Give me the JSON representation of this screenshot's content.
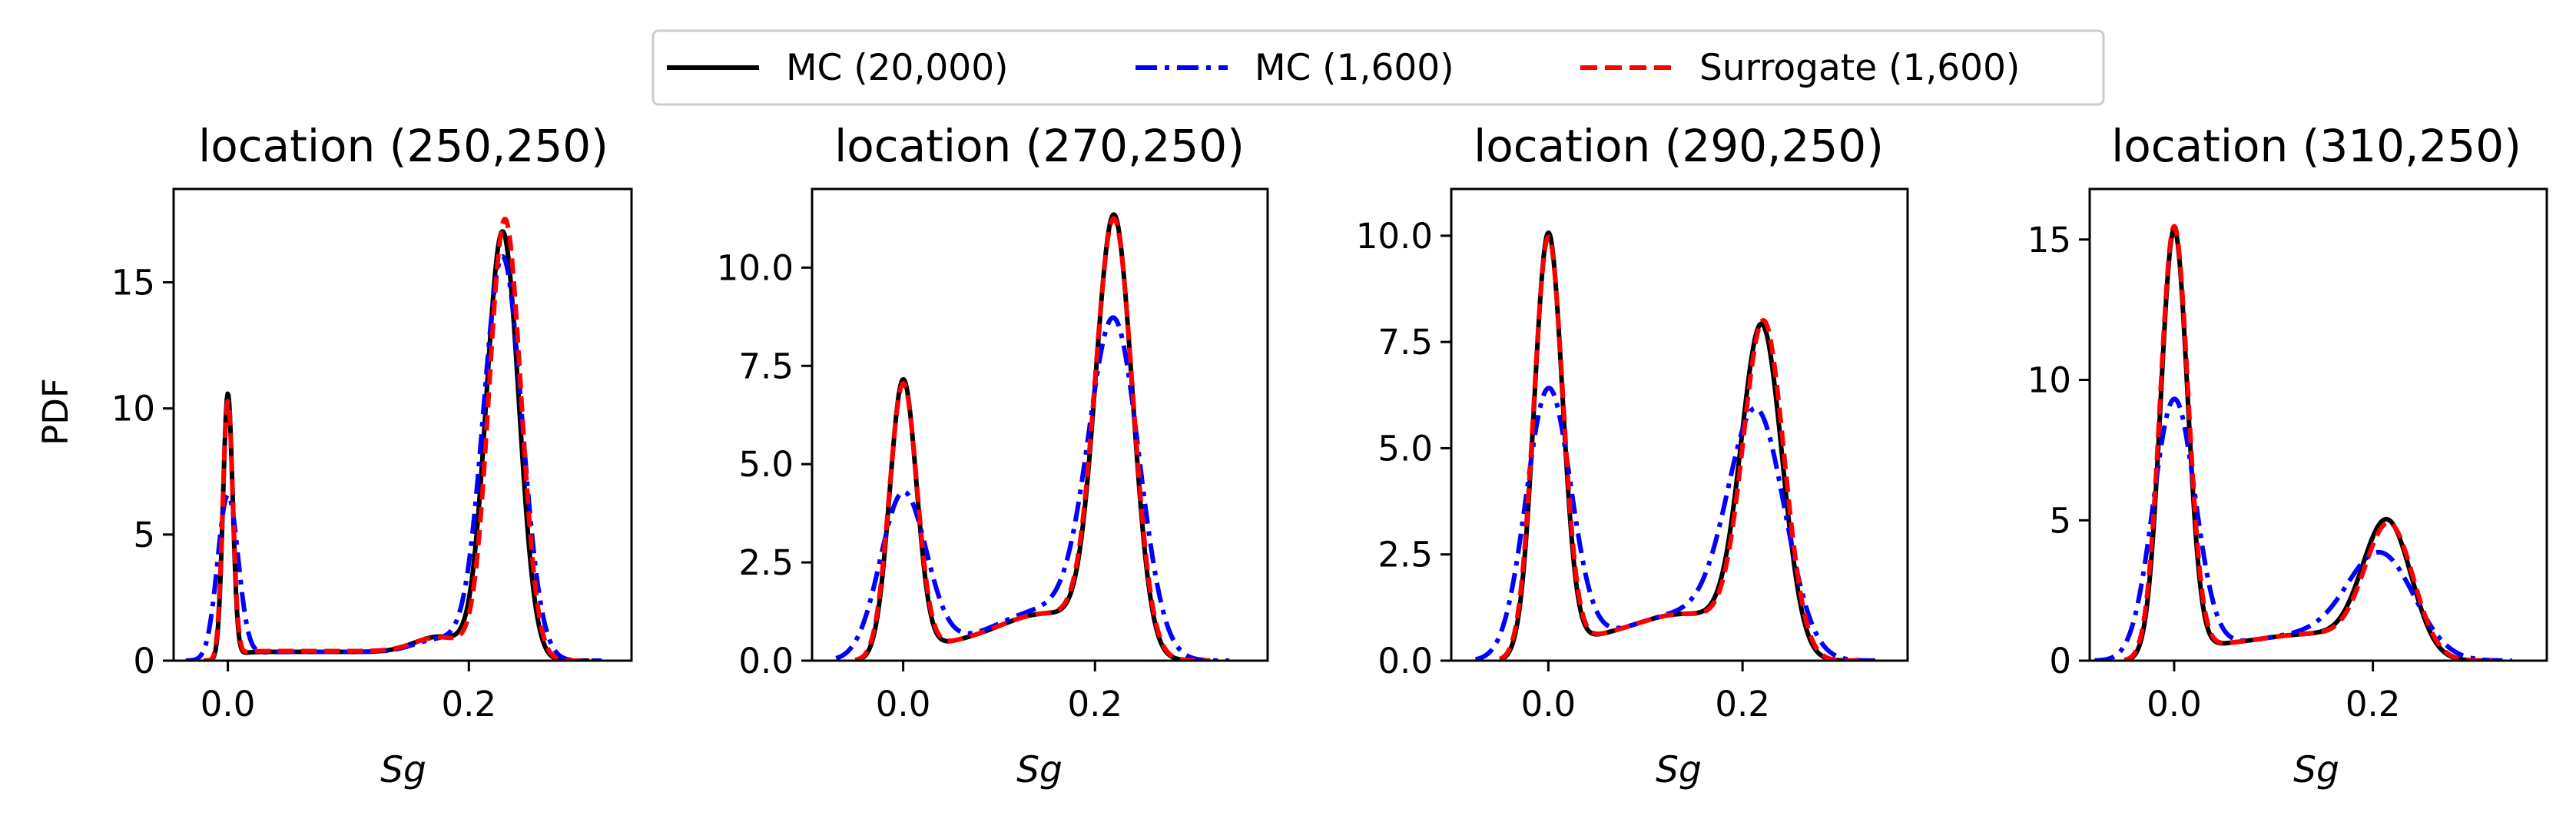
{
  "legend": {
    "placement": "top-center",
    "entries": [
      {
        "label": "MC (20,000)",
        "color": "#000000",
        "style": "solid"
      },
      {
        "label": "MC (1,600)",
        "color": "#0000ff",
        "style": "dashdot"
      },
      {
        "label": "Surrogate (1,600)",
        "color": "#ff0000",
        "style": "dashed"
      }
    ]
  },
  "chart_data": [
    {
      "type": "line",
      "title": "location (250,250)",
      "xlabel": "Sg",
      "ylabel": "PDF",
      "xlim": [
        -0.045,
        0.335
      ],
      "ylim": [
        0,
        18.7
      ],
      "xticks": [
        0.0,
        0.2
      ],
      "xtick_labels": [
        "0.0",
        "0.2"
      ],
      "yticks": [
        0,
        5,
        10,
        15
      ],
      "ytick_labels": [
        "0",
        "5",
        "10",
        "15"
      ],
      "grid": false,
      "series": [
        {
          "name": "MC (20,000)",
          "peaks": [
            {
              "mu": 0.0,
              "sigma": 0.004,
              "amp": 10.5
            },
            {
              "mu": 0.228,
              "sigma": 0.0135,
              "amp": 17.0
            },
            {
              "mu": 0.175,
              "sigma": 0.02,
              "amp": 0.6
            }
          ],
          "base": {
            "amp": 0.35,
            "from": 0.005,
            "to": 0.2,
            "edge": 0.005
          },
          "x_from": -0.02,
          "x_to": 0.3
        },
        {
          "name": "MC (1,600)",
          "peaks": [
            {
              "mu": 0.0,
              "sigma": 0.0085,
              "amp": 6.5
            },
            {
              "mu": 0.228,
              "sigma": 0.016,
              "amp": 16.0
            },
            {
              "mu": 0.175,
              "sigma": 0.02,
              "amp": 0.5
            }
          ],
          "base": {
            "amp": 0.35,
            "from": 0.01,
            "to": 0.2,
            "edge": 0.008
          },
          "x_from": -0.035,
          "x_to": 0.31
        },
        {
          "name": "Surrogate (1,600)",
          "peaks": [
            {
              "mu": 0.0,
              "sigma": 0.0042,
              "amp": 10.2
            },
            {
              "mu": 0.23,
              "sigma": 0.0133,
              "amp": 17.5
            },
            {
              "mu": 0.175,
              "sigma": 0.02,
              "amp": 0.55
            }
          ],
          "base": {
            "amp": 0.38,
            "from": 0.005,
            "to": 0.2,
            "edge": 0.005
          },
          "x_from": -0.02,
          "x_to": 0.3
        }
      ]
    },
    {
      "type": "line",
      "title": "location (270,250)",
      "xlabel": "Sg",
      "ylabel": "",
      "xlim": [
        -0.095,
        0.38
      ],
      "ylim": [
        0,
        12.0
      ],
      "xticks": [
        0.0,
        0.2
      ],
      "xtick_labels": [
        "0.0",
        "0.2"
      ],
      "yticks": [
        0,
        2.5,
        5.0,
        7.5,
        10.0
      ],
      "ytick_labels": [
        "0.0",
        "2.5",
        "5.0",
        "7.5",
        "10.0"
      ],
      "grid": false,
      "series": [
        {
          "name": "MC (20,000)",
          "peaks": [
            {
              "mu": 0.0,
              "sigma": 0.014,
              "amp": 7.1
            },
            {
              "mu": 0.22,
              "sigma": 0.019,
              "amp": 11.0
            },
            {
              "mu": 0.15,
              "sigma": 0.05,
              "amp": 0.8
            }
          ],
          "base": {
            "amp": 0.4,
            "from": 0.02,
            "to": 0.2,
            "edge": 0.01
          },
          "x_from": -0.05,
          "x_to": 0.32
        },
        {
          "name": "MC (1,600)",
          "peaks": [
            {
              "mu": 0.0,
              "sigma": 0.024,
              "amp": 4.2
            },
            {
              "mu": 0.22,
              "sigma": 0.026,
              "amp": 8.3
            },
            {
              "mu": 0.15,
              "sigma": 0.05,
              "amp": 0.9
            }
          ],
          "base": {
            "amp": 0.4,
            "from": 0.02,
            "to": 0.2,
            "edge": 0.015
          },
          "x_from": -0.07,
          "x_to": 0.34
        },
        {
          "name": "Surrogate (1,600)",
          "peaks": [
            {
              "mu": 0.0,
              "sigma": 0.0145,
              "amp": 7.0
            },
            {
              "mu": 0.22,
              "sigma": 0.0195,
              "amp": 10.9
            },
            {
              "mu": 0.15,
              "sigma": 0.05,
              "amp": 0.8
            }
          ],
          "base": {
            "amp": 0.4,
            "from": 0.02,
            "to": 0.2,
            "edge": 0.01
          },
          "x_from": -0.05,
          "x_to": 0.32
        }
      ]
    },
    {
      "type": "line",
      "title": "location (290,250)",
      "xlabel": "Sg",
      "ylabel": "",
      "xlim": [
        -0.1,
        0.37
      ],
      "ylim": [
        0,
        11.1
      ],
      "xticks": [
        0.0,
        0.2
      ],
      "xtick_labels": [
        "0.0",
        "0.2"
      ],
      "yticks": [
        0,
        2.5,
        5.0,
        7.5,
        10.0
      ],
      "ytick_labels": [
        "0.0",
        "2.5",
        "5.0",
        "7.5",
        "10.0"
      ],
      "grid": false,
      "series": [
        {
          "name": "MC (20,000)",
          "peaks": [
            {
              "mu": 0.0,
              "sigma": 0.0145,
              "amp": 10.0
            },
            {
              "mu": 0.22,
              "sigma": 0.021,
              "amp": 7.7
            },
            {
              "mu": 0.14,
              "sigma": 0.05,
              "amp": 0.6
            }
          ],
          "base": {
            "amp": 0.5,
            "from": 0.02,
            "to": 0.2,
            "edge": 0.01
          },
          "x_from": -0.05,
          "x_to": 0.32
        },
        {
          "name": "MC (1,600)",
          "peaks": [
            {
              "mu": 0.0,
              "sigma": 0.023,
              "amp": 6.3
            },
            {
              "mu": 0.215,
              "sigma": 0.029,
              "amp": 5.6
            },
            {
              "mu": 0.14,
              "sigma": 0.05,
              "amp": 0.6
            }
          ],
          "base": {
            "amp": 0.5,
            "from": 0.02,
            "to": 0.2,
            "edge": 0.015
          },
          "x_from": -0.075,
          "x_to": 0.34
        },
        {
          "name": "Surrogate (1,600)",
          "peaks": [
            {
              "mu": 0.0,
              "sigma": 0.015,
              "amp": 9.9
            },
            {
              "mu": 0.222,
              "sigma": 0.021,
              "amp": 7.8
            },
            {
              "mu": 0.14,
              "sigma": 0.05,
              "amp": 0.6
            }
          ],
          "base": {
            "amp": 0.5,
            "from": 0.02,
            "to": 0.2,
            "edge": 0.01
          },
          "x_from": -0.05,
          "x_to": 0.32
        }
      ]
    },
    {
      "type": "line",
      "title": "location (310,250)",
      "xlabel": "Sg",
      "ylabel": "",
      "xlim": [
        -0.085,
        0.375
      ],
      "ylim": [
        0,
        16.8
      ],
      "xticks": [
        0.0,
        0.2
      ],
      "xtick_labels": [
        "0.0",
        "0.2"
      ],
      "yticks": [
        0,
        5,
        10,
        15
      ],
      "ytick_labels": [
        "0",
        "5",
        "10",
        "15"
      ],
      "grid": false,
      "series": [
        {
          "name": "MC (20,000)",
          "peaks": [
            {
              "mu": 0.0,
              "sigma": 0.0135,
              "amp": 15.3
            },
            {
              "mu": 0.215,
              "sigma": 0.024,
              "amp": 4.8
            },
            {
              "mu": 0.14,
              "sigma": 0.05,
              "amp": 0.4
            }
          ],
          "base": {
            "amp": 0.55,
            "from": 0.02,
            "to": 0.2,
            "edge": 0.01
          },
          "x_from": -0.05,
          "x_to": 0.32
        },
        {
          "name": "MC (1,600)",
          "peaks": [
            {
              "mu": 0.0,
              "sigma": 0.021,
              "amp": 9.2
            },
            {
              "mu": 0.21,
              "sigma": 0.033,
              "amp": 3.5
            },
            {
              "mu": 0.14,
              "sigma": 0.05,
              "amp": 0.4
            }
          ],
          "base": {
            "amp": 0.55,
            "from": 0.02,
            "to": 0.2,
            "edge": 0.015
          },
          "x_from": -0.08,
          "x_to": 0.34
        },
        {
          "name": "Surrogate (1,600)",
          "peaks": [
            {
              "mu": 0.0,
              "sigma": 0.014,
              "amp": 15.4
            },
            {
              "mu": 0.217,
              "sigma": 0.024,
              "amp": 4.7
            },
            {
              "mu": 0.14,
              "sigma": 0.05,
              "amp": 0.4
            }
          ],
          "base": {
            "amp": 0.55,
            "from": 0.02,
            "to": 0.2,
            "edge": 0.01
          },
          "x_from": -0.05,
          "x_to": 0.32
        }
      ]
    }
  ]
}
